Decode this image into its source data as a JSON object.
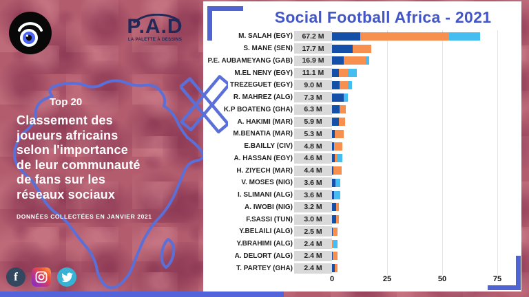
{
  "left_panel": {
    "top_badge": "Top 20",
    "headline_lines": [
      "Classement des",
      "joueurs africains",
      "selon l'importance",
      "de leur communauté",
      "de fans sur les",
      "réseaux sociaux"
    ],
    "data_note": "DONNÉES COLLECTÉES EN JANVIER 2021",
    "pad_logo": {
      "word": "P.A.D",
      "tagline": "LA PALETTE À DESSINS"
    },
    "colors": {
      "background": "#b25c6e",
      "map_outline": "#5b6fd8",
      "text": "#ffffff"
    }
  },
  "chart_data": {
    "type": "bar",
    "orientation": "horizontal",
    "stacked": true,
    "title": "Social Football Africa - 2021",
    "title_color": "#4356c7",
    "unit": "millions of fans",
    "x_ticks": [
      0,
      25,
      50,
      75
    ],
    "xlim": [
      0,
      85
    ],
    "legend": [
      "facebook",
      "instagram",
      "twitter"
    ],
    "series_colors": {
      "facebook": "#1450a8",
      "instagram": "#f78f4e",
      "twitter": "#45bdf0"
    },
    "players": [
      {
        "name": "M. SALAH  (EGY)",
        "value_label": "67.2 M",
        "total": 67.2,
        "segments": {
          "facebook": 12.8,
          "instagram": 40.4,
          "twitter": 14.0
        }
      },
      {
        "name": "S. MANE (SEN)",
        "value_label": "17.7 M",
        "total": 17.7,
        "segments": {
          "facebook": 9.5,
          "instagram": 8.2,
          "twitter": 0
        }
      },
      {
        "name": "P.E. AUBAMEYANG (GAB)",
        "value_label": "16.9 M",
        "total": 16.9,
        "segments": {
          "facebook": 5.3,
          "instagram": 10.1,
          "twitter": 1.5
        }
      },
      {
        "name": "M.EL NENY (EGY)",
        "value_label": "11.1 M",
        "total": 11.1,
        "segments": {
          "facebook": 3.2,
          "instagram": 3.9,
          "twitter": 4.0
        }
      },
      {
        "name": "TREZEGUET (EGY)",
        "value_label": "9.0 M",
        "total": 9.0,
        "segments": {
          "facebook": 3.4,
          "instagram": 3.7,
          "twitter": 1.9
        }
      },
      {
        "name": "R. MAHREZ (ALG)",
        "value_label": "7.3 M",
        "total": 7.3,
        "segments": {
          "facebook": 5.2,
          "instagram": 0,
          "twitter": 2.1
        }
      },
      {
        "name": "K.P BOATENG (GHA)",
        "value_label": "6.3 M",
        "total": 6.3,
        "segments": {
          "facebook": 3.4,
          "instagram": 2.9,
          "twitter": 0
        }
      },
      {
        "name": "A. HAKIMI (MAR)",
        "value_label": "5.9 M",
        "total": 5.9,
        "segments": {
          "facebook": 3.1,
          "instagram": 2.8,
          "twitter": 0
        }
      },
      {
        "name": "M.BENATIA (MAR)",
        "value_label": "5.3 M",
        "total": 5.3,
        "segments": {
          "facebook": 1.1,
          "instagram": 4.2,
          "twitter": 0
        }
      },
      {
        "name": "E.BAILLY (CIV)",
        "value_label": "4.8 M",
        "total": 4.8,
        "segments": {
          "facebook": 1.0,
          "instagram": 3.8,
          "twitter": 0
        }
      },
      {
        "name": "A. HASSAN (EGY)",
        "value_label": "4.6 M",
        "total": 4.6,
        "segments": {
          "facebook": 1.3,
          "instagram": 1.0,
          "twitter": 2.3
        }
      },
      {
        "name": "H. ZIYECH (MAR)",
        "value_label": "4.4 M",
        "total": 4.4,
        "segments": {
          "facebook": 0.6,
          "instagram": 3.8,
          "twitter": 0
        }
      },
      {
        "name": "V. MOSES (NIG)",
        "value_label": "3.6 M",
        "total": 3.6,
        "segments": {
          "facebook": 1.5,
          "instagram": 0,
          "twitter": 2.1
        }
      },
      {
        "name": "I. SLIMANI (ALG)",
        "value_label": "3.6 M",
        "total": 3.6,
        "segments": {
          "facebook": 1.0,
          "instagram": 0,
          "twitter": 2.6
        }
      },
      {
        "name": "A. IWOBI (NIG)",
        "value_label": "3.2 M",
        "total": 3.2,
        "segments": {
          "facebook": 1.8,
          "instagram": 1.4,
          "twitter": 0
        }
      },
      {
        "name": "F.SASSI (TUN)",
        "value_label": "3.0 M",
        "total": 3.0,
        "segments": {
          "facebook": 1.8,
          "instagram": 1.2,
          "twitter": 0
        }
      },
      {
        "name": "Y.BELAILI (ALG)",
        "value_label": "2.5 M",
        "total": 2.5,
        "segments": {
          "facebook": 0.4,
          "instagram": 2.1,
          "twitter": 0
        }
      },
      {
        "name": "Y.BRAHIMI (ALG)",
        "value_label": "2.4 M",
        "total": 2.4,
        "segments": {
          "facebook": 0,
          "instagram": 0.5,
          "twitter": 1.9
        }
      },
      {
        "name": "A. DELORT (ALG)",
        "value_label": "2.4 M",
        "total": 2.4,
        "segments": {
          "facebook": 0.3,
          "instagram": 2.1,
          "twitter": 0
        }
      },
      {
        "name": "T. PARTEY (GHA)",
        "value_label": "2.4 M",
        "total": 2.4,
        "segments": {
          "facebook": 1.2,
          "instagram": 1.2,
          "twitter": 0
        }
      }
    ]
  }
}
